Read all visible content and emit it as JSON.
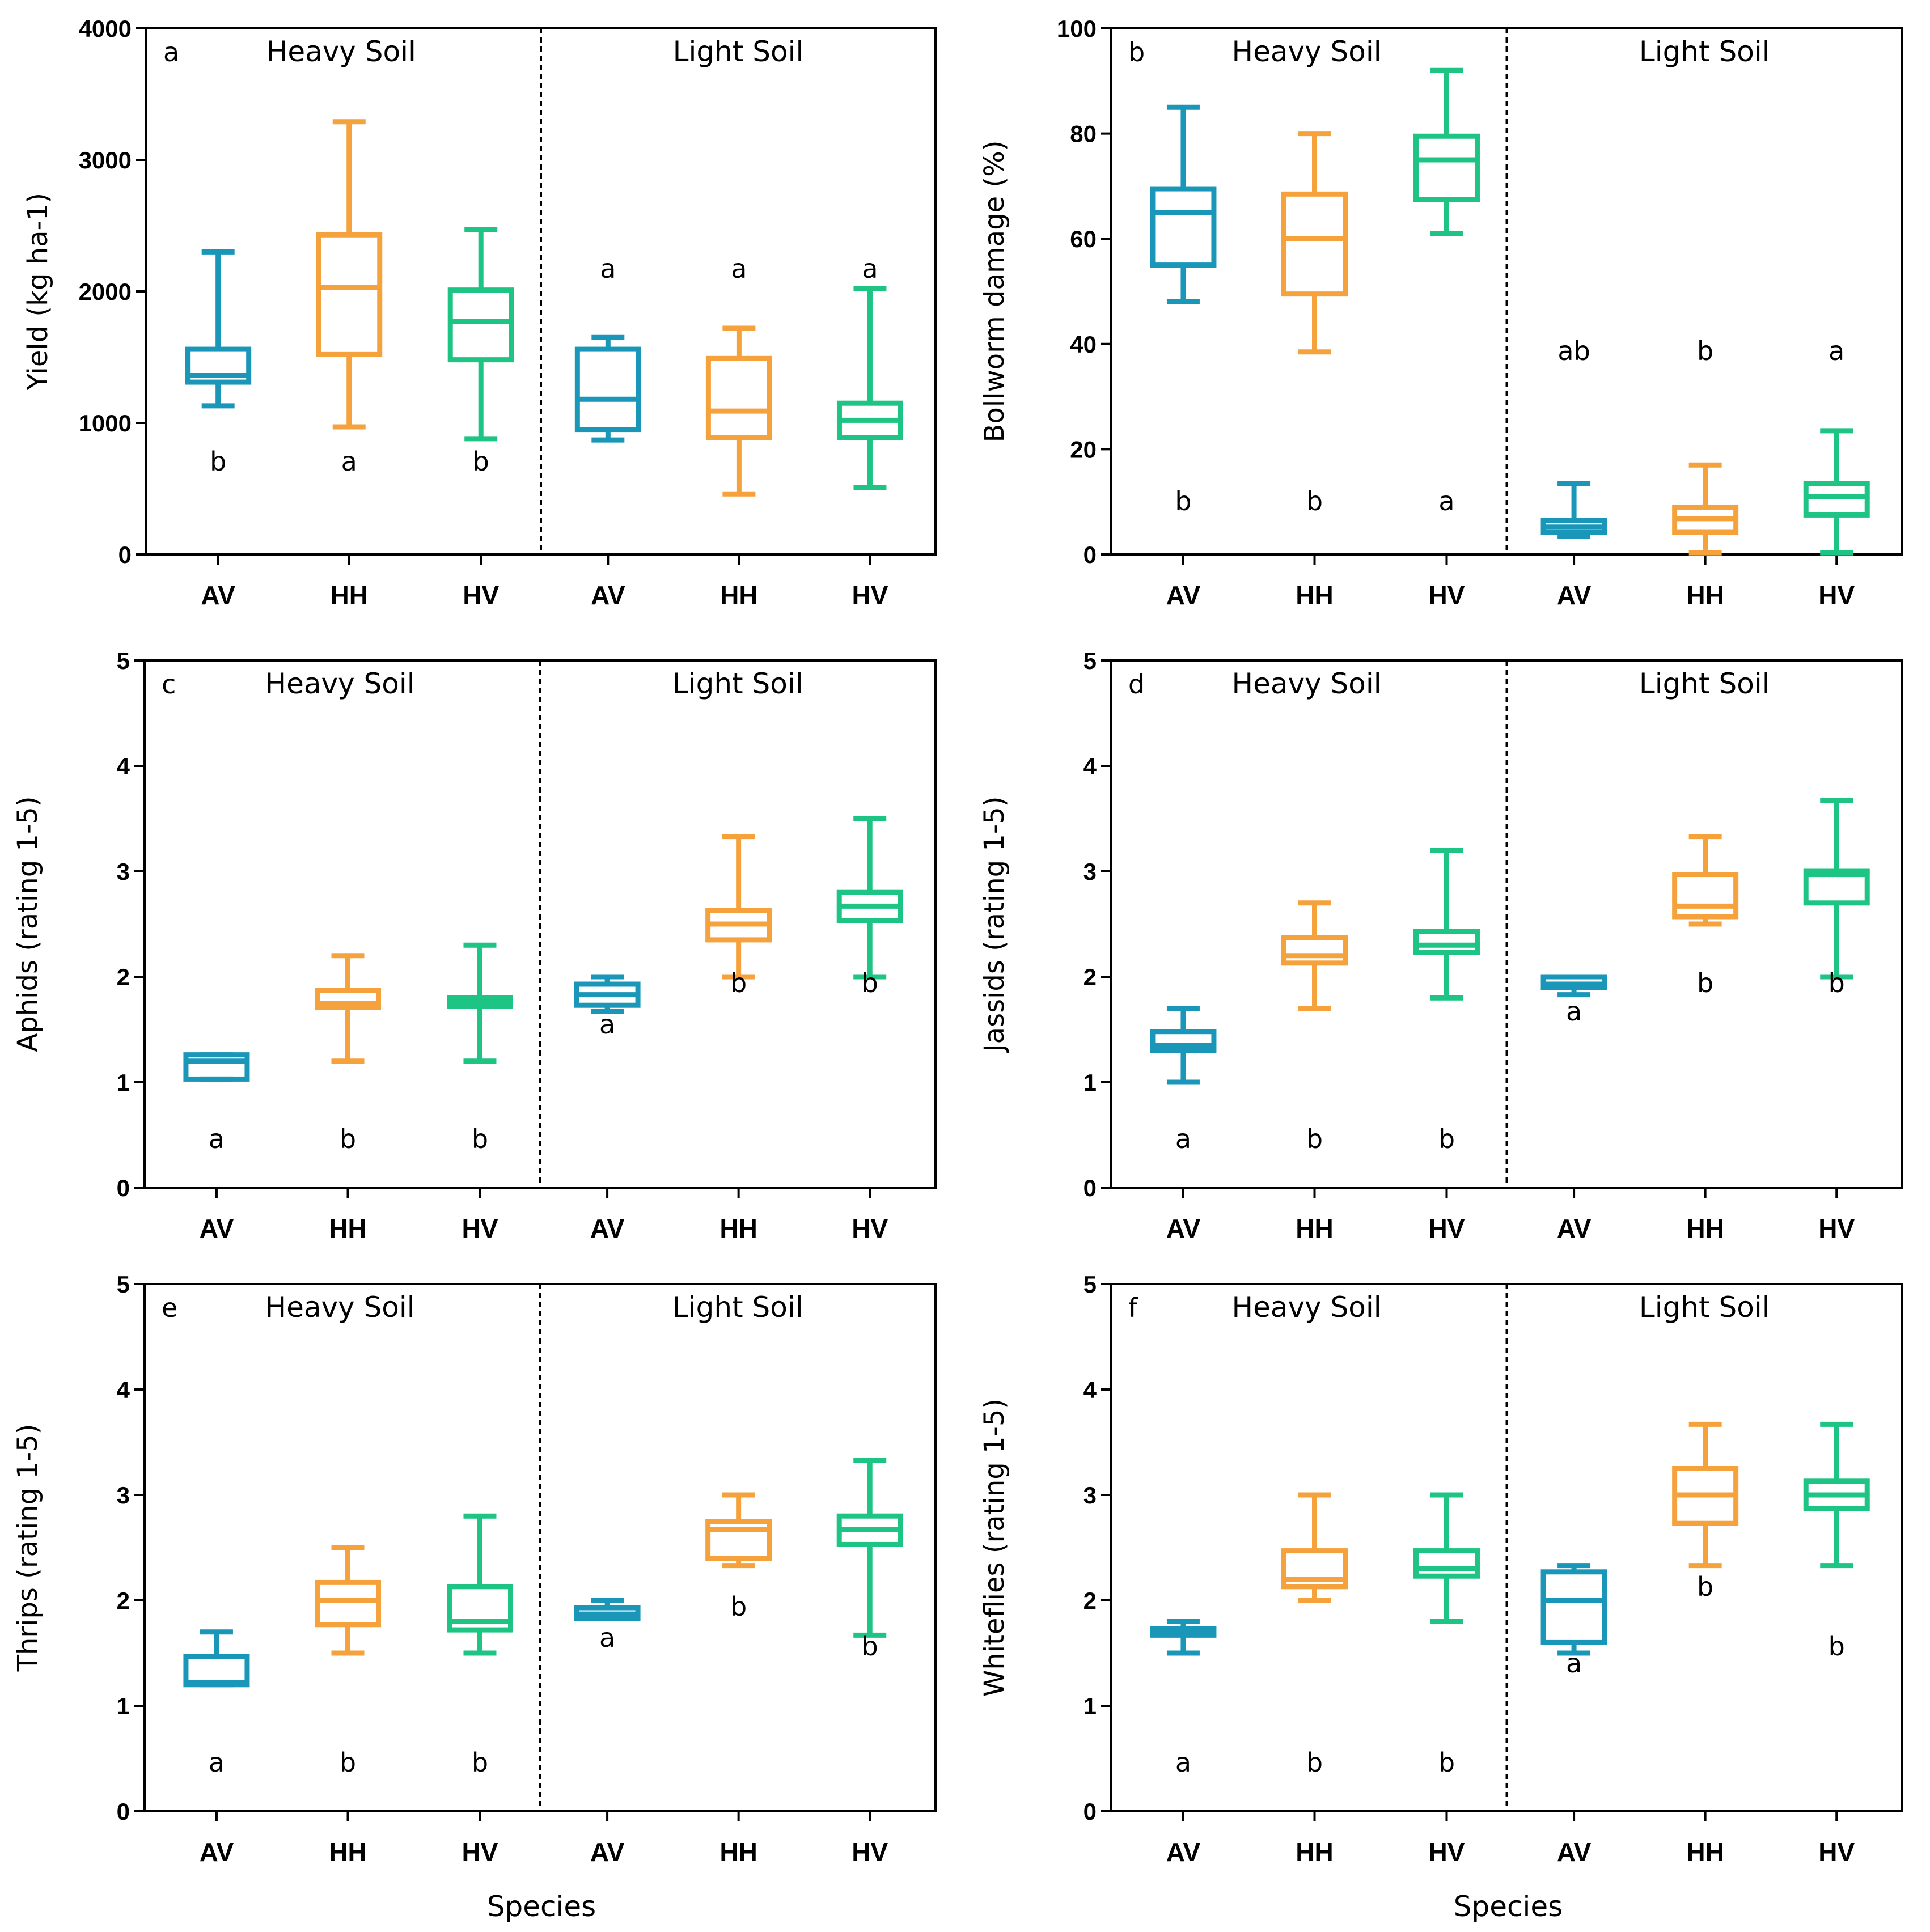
{
  "colors": {
    "AV": "#1a97b8",
    "HH": "#f6a23c",
    "HV": "#1dc483"
  },
  "figure": {
    "xlabel": "Species"
  },
  "chart_data": [
    {
      "type": "box",
      "panel": "a",
      "ylabel": "Yield (kg ha-1)",
      "ylim": [
        0,
        4000
      ],
      "yticks": [
        0,
        1000,
        2000,
        3000,
        4000
      ],
      "groups": [
        "Heavy Soil",
        "Light Soil"
      ],
      "categories": [
        "AV",
        "HH",
        "HV",
        "AV",
        "HH",
        "HV"
      ],
      "boxes": [
        {
          "species": "AV",
          "soil": "Heavy Soil",
          "min": 1130,
          "q1": 1310,
          "median": 1360,
          "q3": 1560,
          "max": 2300,
          "letter": "b"
        },
        {
          "species": "HH",
          "soil": "Heavy Soil",
          "min": 970,
          "q1": 1520,
          "median": 2030,
          "q3": 2430,
          "max": 3290,
          "letter": "a"
        },
        {
          "species": "HV",
          "soil": "Heavy Soil",
          "min": 880,
          "q1": 1480,
          "median": 1770,
          "q3": 2010,
          "max": 2470,
          "letter": "b"
        },
        {
          "species": "AV",
          "soil": "Light Soil",
          "min": 870,
          "q1": 950,
          "median": 1180,
          "q3": 1560,
          "max": 1650,
          "letter": "a"
        },
        {
          "species": "HH",
          "soil": "Light Soil",
          "min": 460,
          "q1": 890,
          "median": 1090,
          "q3": 1490,
          "max": 1720,
          "letter": "a"
        },
        {
          "species": "HV",
          "soil": "Light Soil",
          "min": 510,
          "q1": 890,
          "median": 1020,
          "q3": 1150,
          "max": 2020,
          "letter": "a"
        }
      ]
    },
    {
      "type": "box",
      "panel": "b",
      "ylabel": "Bollworm damage (%)",
      "ylim": [
        0,
        100
      ],
      "yticks": [
        0,
        20,
        40,
        60,
        80,
        100
      ],
      "groups": [
        "Heavy Soil",
        "Light Soil"
      ],
      "categories": [
        "AV",
        "HH",
        "HV",
        "AV",
        "HH",
        "HV"
      ],
      "boxes": [
        {
          "species": "AV",
          "soil": "Heavy Soil",
          "min": 48,
          "q1": 55,
          "median": 65,
          "q3": 69.5,
          "max": 85,
          "letter": "b"
        },
        {
          "species": "HH",
          "soil": "Heavy Soil",
          "min": 38.5,
          "q1": 49.5,
          "median": 60,
          "q3": 68.5,
          "max": 80,
          "letter": "b"
        },
        {
          "species": "HV",
          "soil": "Heavy Soil",
          "min": 61,
          "q1": 67.5,
          "median": 75,
          "q3": 79.5,
          "max": 92,
          "letter": "a"
        },
        {
          "species": "AV",
          "soil": "Light Soil",
          "min": 3.5,
          "q1": 4.2,
          "median": 5.2,
          "q3": 6.5,
          "max": 13.5,
          "letter": "ab"
        },
        {
          "species": "HH",
          "soil": "Light Soil",
          "min": 0.3,
          "q1": 4.2,
          "median": 6.8,
          "q3": 9,
          "max": 17,
          "letter": "b"
        },
        {
          "species": "HV",
          "soil": "Light Soil",
          "min": 0.3,
          "q1": 7.5,
          "median": 11,
          "q3": 13.5,
          "max": 23.5,
          "letter": "a"
        }
      ]
    },
    {
      "type": "box",
      "panel": "c",
      "ylabel": "Aphids (rating 1-5)",
      "ylim": [
        0,
        5
      ],
      "yticks": [
        0,
        1,
        2,
        3,
        4,
        5
      ],
      "groups": [
        "Heavy Soil",
        "Light Soil"
      ],
      "categories": [
        "AV",
        "HH",
        "HV",
        "AV",
        "HH",
        "HV"
      ],
      "boxes": [
        {
          "species": "AV",
          "soil": "Heavy Soil",
          "min": 1.03,
          "q1": 1.03,
          "median": 1.2,
          "q3": 1.26,
          "max": 1.26,
          "letter": "a"
        },
        {
          "species": "HH",
          "soil": "Heavy Soil",
          "min": 1.2,
          "q1": 1.71,
          "median": 1.75,
          "q3": 1.87,
          "max": 2.2,
          "letter": "b"
        },
        {
          "species": "HV",
          "soil": "Heavy Soil",
          "min": 1.2,
          "q1": 1.72,
          "median": 1.76,
          "q3": 1.8,
          "max": 2.3,
          "letter": "b"
        },
        {
          "species": "AV",
          "soil": "Light Soil",
          "min": 1.67,
          "q1": 1.73,
          "median": 1.83,
          "q3": 1.93,
          "max": 2.0,
          "letter": "a"
        },
        {
          "species": "HH",
          "soil": "Light Soil",
          "min": 2.0,
          "q1": 2.35,
          "median": 2.5,
          "q3": 2.63,
          "max": 3.33,
          "letter": "b"
        },
        {
          "species": "HV",
          "soil": "Light Soil",
          "min": 2.0,
          "q1": 2.53,
          "median": 2.67,
          "q3": 2.8,
          "max": 3.5,
          "letter": "b"
        }
      ]
    },
    {
      "type": "box",
      "panel": "d",
      "ylabel": "Jassids (rating 1-5)",
      "ylim": [
        0,
        5
      ],
      "yticks": [
        0,
        1,
        2,
        3,
        4,
        5
      ],
      "groups": [
        "Heavy Soil",
        "Light Soil"
      ],
      "categories": [
        "AV",
        "HH",
        "HV",
        "AV",
        "HH",
        "HV"
      ],
      "boxes": [
        {
          "species": "AV",
          "soil": "Heavy Soil",
          "min": 1.0,
          "q1": 1.3,
          "median": 1.35,
          "q3": 1.48,
          "max": 1.7,
          "letter": "a"
        },
        {
          "species": "HH",
          "soil": "Heavy Soil",
          "min": 1.7,
          "q1": 2.13,
          "median": 2.2,
          "q3": 2.37,
          "max": 2.7,
          "letter": "b"
        },
        {
          "species": "HV",
          "soil": "Heavy Soil",
          "min": 1.8,
          "q1": 2.23,
          "median": 2.3,
          "q3": 2.43,
          "max": 3.2,
          "letter": "b"
        },
        {
          "species": "AV",
          "soil": "Light Soil",
          "min": 1.83,
          "q1": 1.9,
          "median": 1.93,
          "q3": 2.0,
          "max": 2.0,
          "letter": "a"
        },
        {
          "species": "HH",
          "soil": "Light Soil",
          "min": 2.5,
          "q1": 2.57,
          "median": 2.67,
          "q3": 2.97,
          "max": 3.33,
          "letter": "b"
        },
        {
          "species": "HV",
          "soil": "Light Soil",
          "min": 2.0,
          "q1": 2.7,
          "median": 2.97,
          "q3": 3.0,
          "max": 3.67,
          "letter": "b"
        }
      ]
    },
    {
      "type": "box",
      "panel": "e",
      "ylabel": "Thrips (rating 1-5)",
      "ylim": [
        0,
        5
      ],
      "yticks": [
        0,
        1,
        2,
        3,
        4,
        5
      ],
      "groups": [
        "Heavy Soil",
        "Light Soil"
      ],
      "categories": [
        "AV",
        "HH",
        "HV",
        "AV",
        "HH",
        "HV"
      ],
      "boxes": [
        {
          "species": "AV",
          "soil": "Heavy Soil",
          "min": 1.2,
          "q1": 1.2,
          "median": 1.22,
          "q3": 1.47,
          "max": 1.7,
          "letter": "a"
        },
        {
          "species": "HH",
          "soil": "Heavy Soil",
          "min": 1.5,
          "q1": 1.77,
          "median": 2.0,
          "q3": 2.17,
          "max": 2.5,
          "letter": "b"
        },
        {
          "species": "HV",
          "soil": "Heavy Soil",
          "min": 1.5,
          "q1": 1.72,
          "median": 1.8,
          "q3": 2.13,
          "max": 2.8,
          "letter": "b"
        },
        {
          "species": "AV",
          "soil": "Light Soil",
          "min": 1.83,
          "q1": 1.83,
          "median": 1.87,
          "q3": 1.93,
          "max": 2.0,
          "letter": "a"
        },
        {
          "species": "HH",
          "soil": "Light Soil",
          "min": 2.33,
          "q1": 2.4,
          "median": 2.67,
          "q3": 2.75,
          "max": 3.0,
          "letter": "b"
        },
        {
          "species": "HV",
          "soil": "Light Soil",
          "min": 1.67,
          "q1": 2.53,
          "median": 2.67,
          "q3": 2.8,
          "max": 3.33,
          "letter": "b"
        }
      ]
    },
    {
      "type": "box",
      "panel": "f",
      "ylabel": "Whiteflies (rating 1-5)",
      "ylim": [
        0,
        5
      ],
      "yticks": [
        0,
        1,
        2,
        3,
        4,
        5
      ],
      "groups": [
        "Heavy Soil",
        "Light Soil"
      ],
      "categories": [
        "AV",
        "HH",
        "HV",
        "AV",
        "HH",
        "HV"
      ],
      "boxes": [
        {
          "species": "AV",
          "soil": "Heavy Soil",
          "min": 1.5,
          "q1": 1.67,
          "median": 1.7,
          "q3": 1.73,
          "max": 1.8,
          "letter": "a"
        },
        {
          "species": "HH",
          "soil": "Heavy Soil",
          "min": 2.0,
          "q1": 2.13,
          "median": 2.2,
          "q3": 2.47,
          "max": 3.0,
          "letter": "b"
        },
        {
          "species": "HV",
          "soil": "Heavy Soil",
          "min": 1.8,
          "q1": 2.23,
          "median": 2.3,
          "q3": 2.47,
          "max": 3.0,
          "letter": "b"
        },
        {
          "species": "AV",
          "soil": "Light Soil",
          "min": 1.5,
          "q1": 1.6,
          "median": 2.0,
          "q3": 2.27,
          "max": 2.33,
          "letter": "a"
        },
        {
          "species": "HH",
          "soil": "Light Soil",
          "min": 2.33,
          "q1": 2.73,
          "median": 3.0,
          "q3": 3.25,
          "max": 3.67,
          "letter": "b"
        },
        {
          "species": "HV",
          "soil": "Light Soil",
          "min": 2.33,
          "q1": 2.87,
          "median": 3.0,
          "q3": 3.13,
          "max": 3.67,
          "letter": "b"
        }
      ]
    }
  ]
}
